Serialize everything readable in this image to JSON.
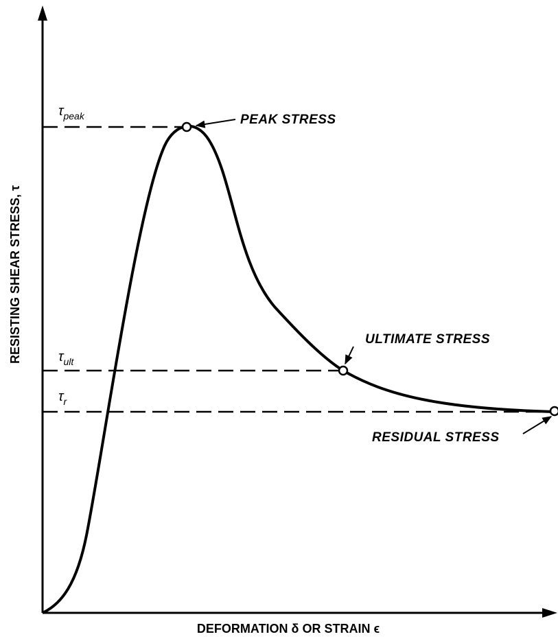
{
  "y_axis_label": "RESISTING SHEAR STRESS, τ",
  "x_axis_label": "DEFORMATION δ OR STRAIN ϵ",
  "levels": [
    {
      "symbol": "τ",
      "subscript": "peak",
      "label": "PEAK STRESS"
    },
    {
      "symbol": "τ",
      "subscript": "ult",
      "label": "ULTIMATE STRESS"
    },
    {
      "symbol": "τ",
      "subscript": "r",
      "label": "RESIDUAL STRESS"
    }
  ]
}
